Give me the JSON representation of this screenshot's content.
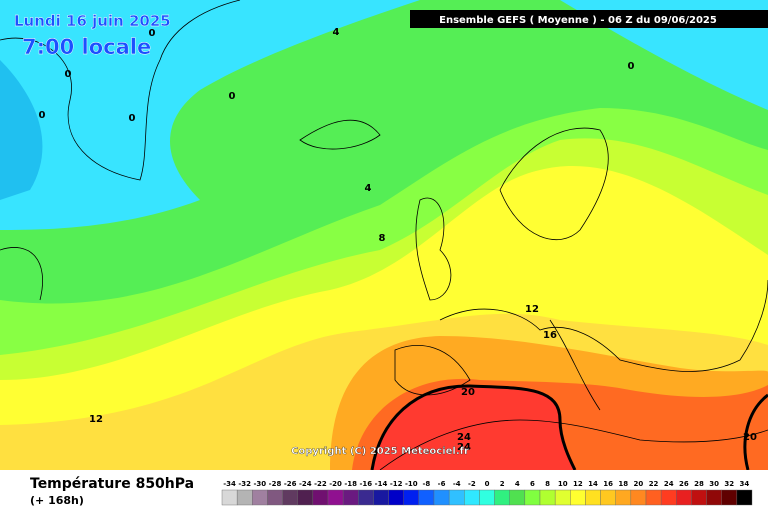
{
  "header": {
    "date": "Lundi 16 juin 2025",
    "time": "7:00 locale",
    "model": "Ensemble GEFS  ( Moyenne )  -  06 Z du 09/06/2025"
  },
  "map": {
    "contour_labels": [
      "0",
      "4",
      "0",
      "0",
      "0",
      "0",
      "0",
      "4",
      "8",
      "12",
      "16",
      "20",
      "12",
      "24",
      "24",
      "20"
    ],
    "copyright": "Copyright (C) 2025 Meteociel.fr"
  },
  "footer": {
    "title": "Température 850hPa",
    "subtitle": "(+ 168h)"
  },
  "legend": {
    "values": [
      -34,
      -32,
      -30,
      -28,
      -26,
      -24,
      -22,
      -20,
      -18,
      -16,
      -14,
      -12,
      -10,
      -8,
      -6,
      -4,
      -2,
      0,
      2,
      4,
      6,
      8,
      10,
      12,
      14,
      16,
      18,
      20,
      22,
      24,
      26,
      28,
      30,
      32,
      34
    ],
    "colors": [
      "#d8d8d8",
      "#b4b4b4",
      "#a080a0",
      "#805880",
      "#603a60",
      "#502050",
      "#701070",
      "#901090",
      "#6a1a80",
      "#3a2a90",
      "#1818a0",
      "#0000c8",
      "#0020f0",
      "#1060ff",
      "#2090ff",
      "#30c0ff",
      "#30e8ff",
      "#30ffe0",
      "#30f080",
      "#50e050",
      "#80ff40",
      "#b0ff30",
      "#e0ff30",
      "#ffff30",
      "#ffe020",
      "#ffc820",
      "#ffa820",
      "#ff8820",
      "#ff6020",
      "#ff3c20",
      "#e82020",
      "#c01010",
      "#900808",
      "#600000",
      "#000000"
    ]
  }
}
